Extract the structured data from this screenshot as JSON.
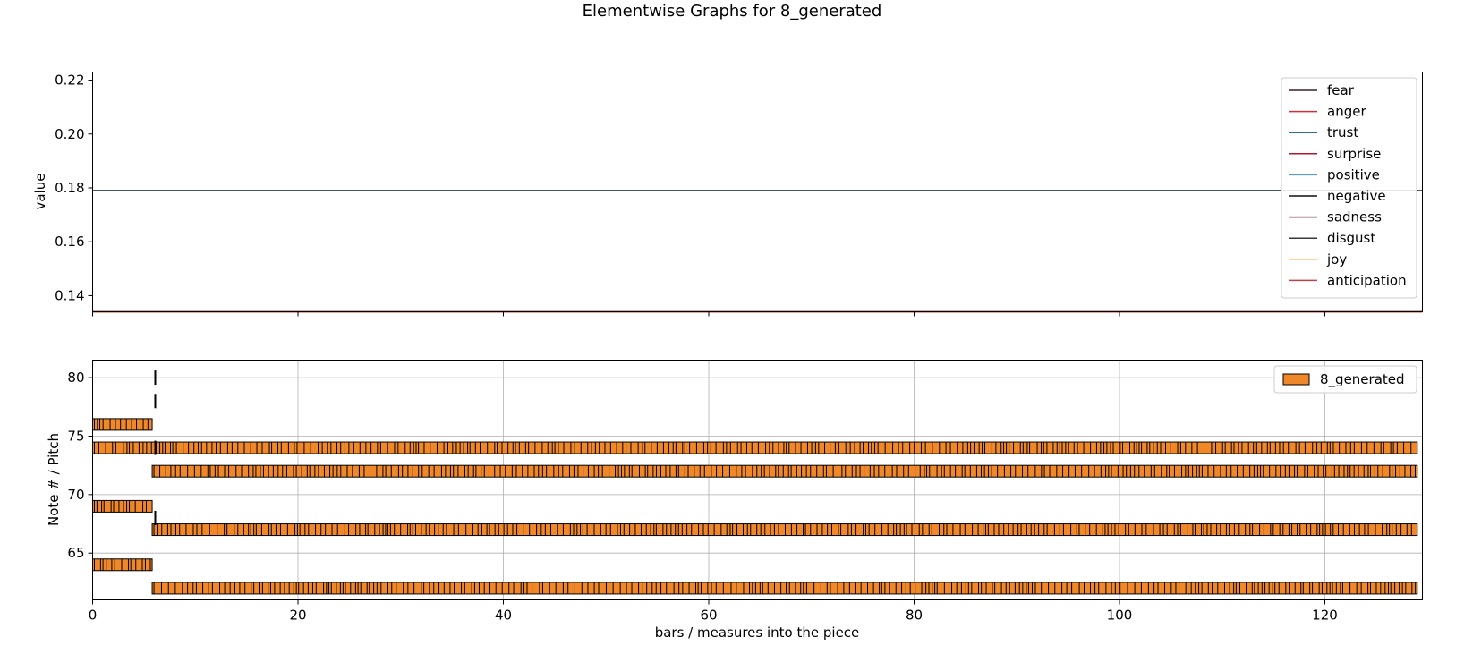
{
  "figure_title": "Elementwise Graphs for 8_generated",
  "chart_data": [
    {
      "type": "line",
      "title": "",
      "xlabel": "",
      "ylabel": "value",
      "xlim": [
        0,
        129.5
      ],
      "ylim": [
        0.134,
        0.223
      ],
      "grid": false,
      "legend_position": "top-right",
      "yticks": [
        "0.14",
        "0.16",
        "0.18",
        "0.20",
        "0.22"
      ],
      "xticks_labeled": false,
      "series": [
        {
          "name": "fear",
          "color": "#3b1f2b",
          "x": [
            0,
            129.5
          ],
          "y": [
            0.134,
            0.134
          ]
        },
        {
          "name": "anger",
          "color": "#d62b3b",
          "x": [
            0,
            129.5
          ],
          "y": [
            0.134,
            0.134
          ]
        },
        {
          "name": "trust",
          "color": "#2a6f97",
          "x": [
            0,
            129.5
          ],
          "y": [
            0.179,
            0.179
          ]
        },
        {
          "name": "surprise",
          "color": "#b0172f",
          "x": [
            0,
            129.5
          ],
          "y": [
            0.134,
            0.134
          ]
        },
        {
          "name": "positive",
          "color": "#5b9bd5",
          "x": [
            0,
            129.5
          ],
          "y": [
            0.179,
            0.179
          ]
        },
        {
          "name": "negative",
          "color": "#111111",
          "x": [
            0,
            129.5
          ],
          "y": [
            0.134,
            0.134
          ]
        },
        {
          "name": "sadness",
          "color": "#7a2020",
          "x": [
            0,
            129.5
          ],
          "y": [
            0.134,
            0.134
          ]
        },
        {
          "name": "disgust",
          "color": "#3a3a3a",
          "x": [
            0,
            129.5
          ],
          "y": [
            0.179,
            0.179
          ]
        },
        {
          "name": "joy",
          "color": "#f0a830",
          "x": [
            0,
            129.5
          ],
          "y": [
            0.134,
            0.134
          ]
        },
        {
          "name": "anticipation",
          "color": "#c0404a",
          "x": [
            0,
            129.5
          ],
          "y": [
            0.134,
            0.134
          ]
        }
      ]
    },
    {
      "type": "bar",
      "orientation": "horizontal-broken",
      "title": "",
      "xlabel": "bars / measures into the piece",
      "ylabel": "Note # / Pitch",
      "xlim": [
        0,
        129.5
      ],
      "ylim": [
        61,
        81.5
      ],
      "grid": true,
      "legend_position": "top-right",
      "xticks": [
        "0",
        "20",
        "40",
        "60",
        "80",
        "100",
        "120"
      ],
      "yticks": [
        "65",
        "70",
        "75",
        "80"
      ],
      "bar_color": "#f0882a",
      "edge_color": "#000000",
      "series": [
        {
          "name": "8_generated",
          "rows": [
            {
              "pitch": 76,
              "start": 0,
              "end": 5.8
            },
            {
              "pitch": 74,
              "start": 0,
              "end": 129
            },
            {
              "pitch": 72,
              "start": 5.8,
              "end": 129
            },
            {
              "pitch": 69,
              "start": 0,
              "end": 5.8
            },
            {
              "pitch": 67,
              "start": 5.8,
              "end": 129
            },
            {
              "pitch": 64,
              "start": 0,
              "end": 5.8
            },
            {
              "pitch": 62,
              "start": 5.8,
              "end": 129
            }
          ],
          "marker_x": 6.1,
          "marker_pitches": [
            80,
            78,
            74,
            68
          ]
        }
      ]
    }
  ]
}
